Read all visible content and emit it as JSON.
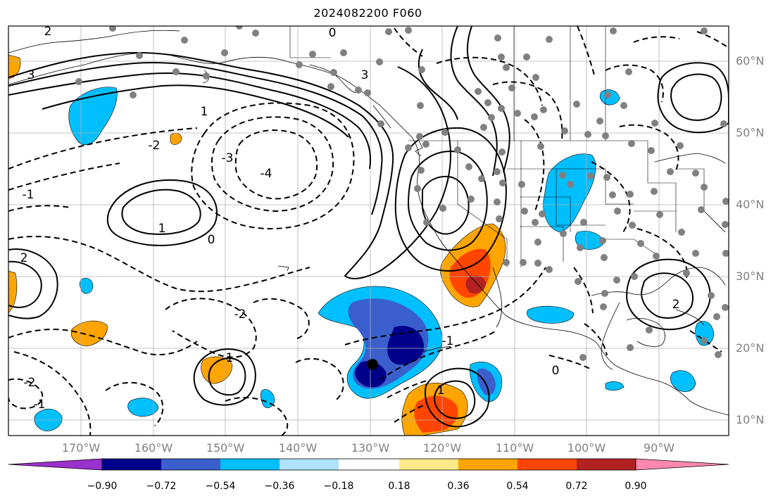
{
  "title": "2024082200 F060",
  "lat_labels": [
    "60°N",
    "50°N",
    "40°N",
    "30°N",
    "20°N",
    "10°N"
  ],
  "lon_labels": [
    "170°W",
    "160°W",
    "150°W",
    "140°W",
    "130°W",
    "120°W",
    "110°W",
    "100°W",
    "90°W"
  ],
  "colorbar": {
    "ticks": [
      "−0.90",
      "−0.72",
      "−0.54",
      "−0.36",
      "−0.18",
      "0.18",
      "0.36",
      "0.54",
      "0.72",
      "0.90"
    ],
    "colors": [
      "#9932cc",
      "#00008b",
      "#3a5fcd",
      "#00bfff",
      "#aee2ff",
      "#ffffff",
      "#fde98a",
      "#ffa500",
      "#ff4500",
      "#b22222",
      "#ff87b0"
    ]
  },
  "contour_labels": [
    "2",
    "0",
    "3",
    "-2",
    "-1",
    "1",
    "-3",
    "-4",
    "0",
    "1",
    "2",
    "3",
    "1",
    "-1",
    "-2",
    "0",
    "-1",
    "1",
    "-2",
    "2"
  ],
  "colors": {
    "station_marker": "#808080",
    "contour": "#000000",
    "axis_label": "#808080"
  }
}
